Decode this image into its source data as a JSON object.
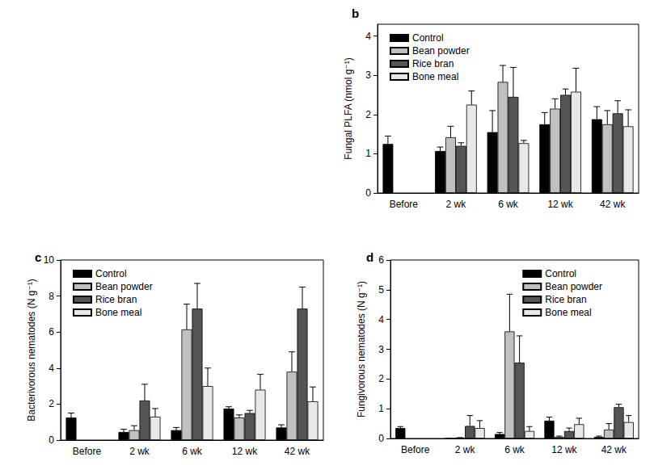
{
  "chart_data": [
    {
      "type": "bar",
      "title": "b",
      "ylabel": "Fungal PLFA (nmol g⁻¹)",
      "categories": [
        "Before",
        "2 wk",
        "6 wk",
        "12 wk",
        "42 wk"
      ],
      "ylim": [
        0,
        4.3
      ],
      "yticks": [
        0,
        1,
        2,
        3,
        4
      ],
      "grid": false,
      "legend": "upper left",
      "series": [
        {
          "name": "Control",
          "color": "#000000",
          "values": [
            1.25,
            1.07,
            1.55,
            1.75,
            1.88
          ],
          "errors": [
            0.2,
            0.1,
            0.55,
            0.3,
            0.32
          ]
        },
        {
          "name": "Bean powder",
          "color": "#c0c0c0",
          "values": [
            null,
            1.42,
            2.83,
            2.15,
            1.75
          ],
          "errors": [
            null,
            0.28,
            0.42,
            0.25,
            0.35
          ]
        },
        {
          "name": "Rice bran",
          "color": "#555555",
          "values": [
            null,
            1.2,
            2.45,
            2.5,
            2.03
          ],
          "errors": [
            null,
            0.08,
            0.75,
            0.15,
            0.32
          ]
        },
        {
          "name": "Bone meal",
          "color": "#e8e8e8",
          "values": [
            null,
            2.25,
            1.27,
            2.58,
            1.7
          ],
          "errors": [
            null,
            0.35,
            0.07,
            0.6,
            0.42
          ]
        }
      ]
    },
    {
      "type": "bar",
      "title": "c",
      "ylabel": "Bacterivorous nematodes (N g⁻¹)",
      "categories": [
        "Before",
        "2 wk",
        "6 wk",
        "12 wk",
        "42 wk"
      ],
      "ylim": [
        0,
        10
      ],
      "yticks": [
        0,
        2,
        4,
        6,
        8,
        10
      ],
      "grid": false,
      "legend": "upper left",
      "series": [
        {
          "name": "Control",
          "color": "#000000",
          "values": [
            1.25,
            0.45,
            0.55,
            1.75,
            0.7
          ],
          "errors": [
            0.25,
            0.15,
            0.15,
            0.1,
            0.15
          ]
        },
        {
          "name": "Bean powder",
          "color": "#c0c0c0",
          "values": [
            null,
            0.55,
            6.15,
            1.25,
            3.8
          ],
          "errors": [
            null,
            0.25,
            1.4,
            0.15,
            1.1
          ]
        },
        {
          "name": "Rice bran",
          "color": "#555555",
          "values": [
            null,
            2.2,
            7.3,
            1.5,
            7.3
          ],
          "errors": [
            null,
            0.9,
            1.4,
            0.15,
            1.2
          ]
        },
        {
          "name": "Bone meal",
          "color": "#e8e8e8",
          "values": [
            null,
            1.3,
            3.0,
            2.8,
            2.15
          ],
          "errors": [
            null,
            0.45,
            1.0,
            0.85,
            0.8
          ]
        }
      ]
    },
    {
      "type": "bar",
      "title": "d",
      "ylabel": "Fungivorous nematodes (N g⁻¹)",
      "categories": [
        "Before",
        "2 wk",
        "6 wk",
        "12 wk",
        "42 wk"
      ],
      "ylim": [
        0,
        6
      ],
      "yticks": [
        0,
        1,
        2,
        3,
        4,
        5,
        6
      ],
      "grid": false,
      "legend": "upper right",
      "series": [
        {
          "name": "Control",
          "color": "#000000",
          "values": [
            0.35,
            0,
            0.15,
            0.6,
            0.05
          ],
          "errors": [
            0.05,
            0,
            0.05,
            0.12,
            0.03
          ]
        },
        {
          "name": "Bean powder",
          "color": "#c0c0c0",
          "values": [
            null,
            0.02,
            3.6,
            0.05,
            0.3
          ],
          "errors": [
            null,
            0.01,
            1.25,
            0.03,
            0.2
          ]
        },
        {
          "name": "Rice bran",
          "color": "#555555",
          "values": [
            null,
            0.42,
            2.55,
            0.25,
            1.05
          ],
          "errors": [
            null,
            0.35,
            0.9,
            0.1,
            0.1
          ]
        },
        {
          "name": "Bone meal",
          "color": "#e8e8e8",
          "values": [
            null,
            0.35,
            0.25,
            0.48,
            0.55
          ],
          "errors": [
            null,
            0.25,
            0.15,
            0.2,
            0.22
          ]
        }
      ]
    }
  ]
}
